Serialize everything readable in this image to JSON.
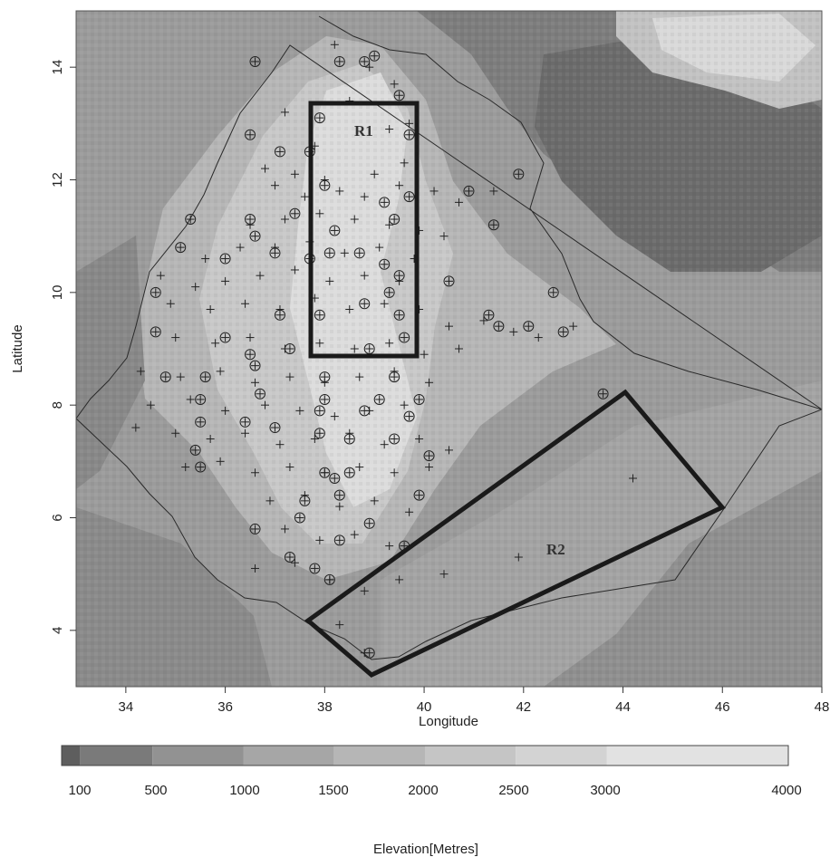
{
  "axes": {
    "x_title": "Longitude",
    "y_title": "Latitude",
    "x_ticks": [
      34,
      36,
      38,
      40,
      42,
      44,
      46,
      48
    ],
    "y_ticks": [
      4,
      6,
      8,
      10,
      12,
      14
    ],
    "x_range": [
      33,
      48
    ],
    "y_range": [
      3,
      15
    ]
  },
  "map": {
    "region_labels": [
      "R1",
      "R2"
    ],
    "colors": {
      "background": "#9b9b9b",
      "highlands": "#c2c2c2",
      "high_peaks": "#e0e0e0",
      "lowlands": "#7d7d7d",
      "depression": "#6b6b6b",
      "boundary": "#2a2a2a",
      "region_box": "#1a1a1a"
    },
    "regions": [
      {
        "name": "R1",
        "shape": "rectangle",
        "lon": [
          37.8,
          39.8
        ],
        "lat": [
          8.9,
          13.3
        ]
      },
      {
        "name": "R2",
        "shape": "polygon",
        "corners_lonlat": [
          [
            37.7,
            4.2
          ],
          [
            44.1,
            8.2
          ],
          [
            46.0,
            6.2
          ],
          [
            39.0,
            3.2
          ]
        ]
      }
    ]
  },
  "legend": {
    "title": "Elevation[Metres]",
    "tick_labels": [
      "100",
      "500",
      "1000",
      "1500",
      "2000",
      "2500",
      "3000",
      "4000"
    ],
    "colors": [
      "#5e5e5e",
      "#7a7a7a",
      "#929292",
      "#a6a6a6",
      "#b6b6b6",
      "#c5c5c5",
      "#d3d3d3",
      "#e2e2e2"
    ]
  },
  "chart_data": {
    "type": "scatter",
    "xlabel": "Longitude",
    "ylabel": "Latitude",
    "xlim": [
      33,
      48
    ],
    "ylim": [
      3,
      15
    ],
    "series": [
      {
        "marker": "plus",
        "points": [
          [
            38.2,
            14.4
          ],
          [
            38.9,
            14.0
          ],
          [
            39.4,
            13.7
          ],
          [
            38.5,
            13.4
          ],
          [
            39.7,
            13.0
          ],
          [
            37.2,
            13.2
          ],
          [
            39.3,
            12.9
          ],
          [
            37.8,
            12.6
          ],
          [
            36.8,
            12.2
          ],
          [
            37.4,
            12.1
          ],
          [
            38.0,
            12.0
          ],
          [
            39.0,
            12.1
          ],
          [
            39.6,
            12.3
          ],
          [
            37.0,
            11.9
          ],
          [
            37.6,
            11.7
          ],
          [
            38.3,
            11.8
          ],
          [
            38.8,
            11.7
          ],
          [
            39.5,
            11.9
          ],
          [
            40.2,
            11.8
          ],
          [
            40.7,
            11.6
          ],
          [
            41.4,
            11.8
          ],
          [
            36.5,
            11.2
          ],
          [
            37.2,
            11.3
          ],
          [
            37.9,
            11.4
          ],
          [
            38.6,
            11.3
          ],
          [
            39.3,
            11.2
          ],
          [
            39.9,
            11.1
          ],
          [
            40.4,
            11.0
          ],
          [
            35.6,
            10.6
          ],
          [
            36.3,
            10.8
          ],
          [
            37.0,
            10.8
          ],
          [
            37.7,
            10.9
          ],
          [
            38.4,
            10.7
          ],
          [
            39.1,
            10.8
          ],
          [
            39.8,
            10.6
          ],
          [
            34.7,
            10.3
          ],
          [
            35.4,
            10.1
          ],
          [
            36.0,
            10.2
          ],
          [
            36.7,
            10.3
          ],
          [
            37.4,
            10.4
          ],
          [
            38.1,
            10.2
          ],
          [
            38.8,
            10.3
          ],
          [
            39.5,
            10.2
          ],
          [
            34.9,
            9.8
          ],
          [
            35.7,
            9.7
          ],
          [
            36.4,
            9.8
          ],
          [
            37.1,
            9.7
          ],
          [
            37.8,
            9.9
          ],
          [
            38.5,
            9.7
          ],
          [
            39.2,
            9.8
          ],
          [
            39.9,
            9.7
          ],
          [
            40.5,
            9.4
          ],
          [
            41.2,
            9.5
          ],
          [
            41.8,
            9.3
          ],
          [
            42.3,
            9.2
          ],
          [
            43.0,
            9.4
          ],
          [
            35.0,
            9.2
          ],
          [
            35.8,
            9.1
          ],
          [
            36.5,
            9.2
          ],
          [
            37.2,
            9.0
          ],
          [
            37.9,
            9.1
          ],
          [
            38.6,
            9.0
          ],
          [
            39.3,
            9.1
          ],
          [
            40.0,
            8.9
          ],
          [
            40.7,
            9.0
          ],
          [
            34.3,
            8.6
          ],
          [
            35.1,
            8.5
          ],
          [
            35.9,
            8.6
          ],
          [
            36.6,
            8.4
          ],
          [
            37.3,
            8.5
          ],
          [
            38.0,
            8.4
          ],
          [
            38.7,
            8.5
          ],
          [
            39.4,
            8.6
          ],
          [
            40.1,
            8.4
          ],
          [
            34.5,
            8.0
          ],
          [
            35.3,
            8.1
          ],
          [
            36.0,
            7.9
          ],
          [
            36.8,
            8.0
          ],
          [
            37.5,
            7.9
          ],
          [
            38.2,
            7.8
          ],
          [
            38.9,
            7.9
          ],
          [
            39.6,
            8.0
          ],
          [
            34.2,
            7.6
          ],
          [
            35.0,
            7.5
          ],
          [
            35.7,
            7.4
          ],
          [
            36.4,
            7.5
          ],
          [
            37.1,
            7.3
          ],
          [
            37.8,
            7.4
          ],
          [
            38.5,
            7.5
          ],
          [
            39.2,
            7.3
          ],
          [
            39.9,
            7.4
          ],
          [
            40.5,
            7.2
          ],
          [
            35.2,
            6.9
          ],
          [
            35.9,
            7.0
          ],
          [
            36.6,
            6.8
          ],
          [
            37.3,
            6.9
          ],
          [
            38.0,
            6.8
          ],
          [
            38.7,
            6.9
          ],
          [
            39.4,
            6.8
          ],
          [
            40.1,
            6.9
          ],
          [
            36.9,
            6.3
          ],
          [
            37.6,
            6.4
          ],
          [
            38.3,
            6.2
          ],
          [
            39.0,
            6.3
          ],
          [
            39.7,
            6.1
          ],
          [
            37.2,
            5.8
          ],
          [
            37.9,
            5.6
          ],
          [
            38.6,
            5.7
          ],
          [
            39.3,
            5.5
          ],
          [
            36.6,
            5.1
          ],
          [
            37.4,
            5.2
          ],
          [
            38.1,
            4.9
          ],
          [
            38.8,
            4.7
          ],
          [
            39.5,
            4.9
          ],
          [
            40.4,
            5.0
          ],
          [
            41.9,
            5.3
          ],
          [
            44.2,
            6.7
          ],
          [
            38.3,
            4.1
          ],
          [
            38.8,
            3.6
          ]
        ]
      },
      {
        "marker": "circle-plus",
        "points": [
          [
            36.6,
            14.1
          ],
          [
            38.3,
            14.1
          ],
          [
            38.8,
            14.1
          ],
          [
            39.0,
            14.2
          ],
          [
            39.5,
            13.5
          ],
          [
            37.9,
            13.1
          ],
          [
            39.7,
            12.8
          ],
          [
            36.5,
            12.8
          ],
          [
            37.1,
            12.5
          ],
          [
            37.7,
            12.5
          ],
          [
            41.9,
            12.1
          ],
          [
            38.0,
            11.9
          ],
          [
            39.7,
            11.7
          ],
          [
            40.9,
            11.8
          ],
          [
            39.2,
            11.6
          ],
          [
            35.3,
            11.3
          ],
          [
            36.5,
            11.3
          ],
          [
            37.4,
            11.4
          ],
          [
            38.2,
            11.1
          ],
          [
            39.4,
            11.3
          ],
          [
            41.4,
            11.2
          ],
          [
            36.6,
            11.0
          ],
          [
            38.1,
            10.7
          ],
          [
            38.7,
            10.7
          ],
          [
            35.1,
            10.8
          ],
          [
            36.0,
            10.6
          ],
          [
            37.0,
            10.7
          ],
          [
            37.7,
            10.6
          ],
          [
            39.2,
            10.5
          ],
          [
            39.5,
            10.3
          ],
          [
            40.5,
            10.2
          ],
          [
            34.6,
            10.0
          ],
          [
            39.3,
            10.0
          ],
          [
            42.6,
            10.0
          ],
          [
            38.8,
            9.8
          ],
          [
            39.5,
            9.6
          ],
          [
            37.1,
            9.6
          ],
          [
            37.9,
            9.6
          ],
          [
            41.3,
            9.6
          ],
          [
            41.5,
            9.4
          ],
          [
            42.1,
            9.4
          ],
          [
            42.8,
            9.3
          ],
          [
            34.6,
            9.3
          ],
          [
            36.0,
            9.2
          ],
          [
            36.5,
            8.9
          ],
          [
            38.9,
            9.0
          ],
          [
            39.6,
            9.2
          ],
          [
            37.3,
            9.0
          ],
          [
            34.8,
            8.5
          ],
          [
            35.6,
            8.5
          ],
          [
            36.6,
            8.7
          ],
          [
            38.0,
            8.5
          ],
          [
            39.4,
            8.5
          ],
          [
            43.6,
            8.2
          ],
          [
            35.5,
            8.1
          ],
          [
            36.7,
            8.2
          ],
          [
            38.0,
            8.1
          ],
          [
            39.1,
            8.1
          ],
          [
            39.9,
            8.1
          ],
          [
            35.5,
            7.7
          ],
          [
            36.4,
            7.7
          ],
          [
            37.0,
            7.6
          ],
          [
            37.9,
            7.9
          ],
          [
            38.8,
            7.9
          ],
          [
            39.7,
            7.8
          ],
          [
            35.4,
            7.2
          ],
          [
            35.5,
            6.9
          ],
          [
            37.9,
            7.5
          ],
          [
            38.5,
            7.4
          ],
          [
            39.4,
            7.4
          ],
          [
            40.1,
            7.1
          ],
          [
            38.0,
            6.8
          ],
          [
            38.5,
            6.8
          ],
          [
            37.6,
            6.3
          ],
          [
            38.3,
            6.4
          ],
          [
            38.2,
            6.7
          ],
          [
            39.9,
            6.4
          ],
          [
            37.5,
            6.0
          ],
          [
            38.9,
            5.9
          ],
          [
            36.6,
            5.8
          ],
          [
            37.3,
            5.3
          ],
          [
            38.3,
            5.6
          ],
          [
            39.6,
            5.5
          ],
          [
            37.8,
            5.1
          ],
          [
            38.1,
            4.9
          ],
          [
            38.9,
            3.6
          ]
        ]
      }
    ]
  }
}
